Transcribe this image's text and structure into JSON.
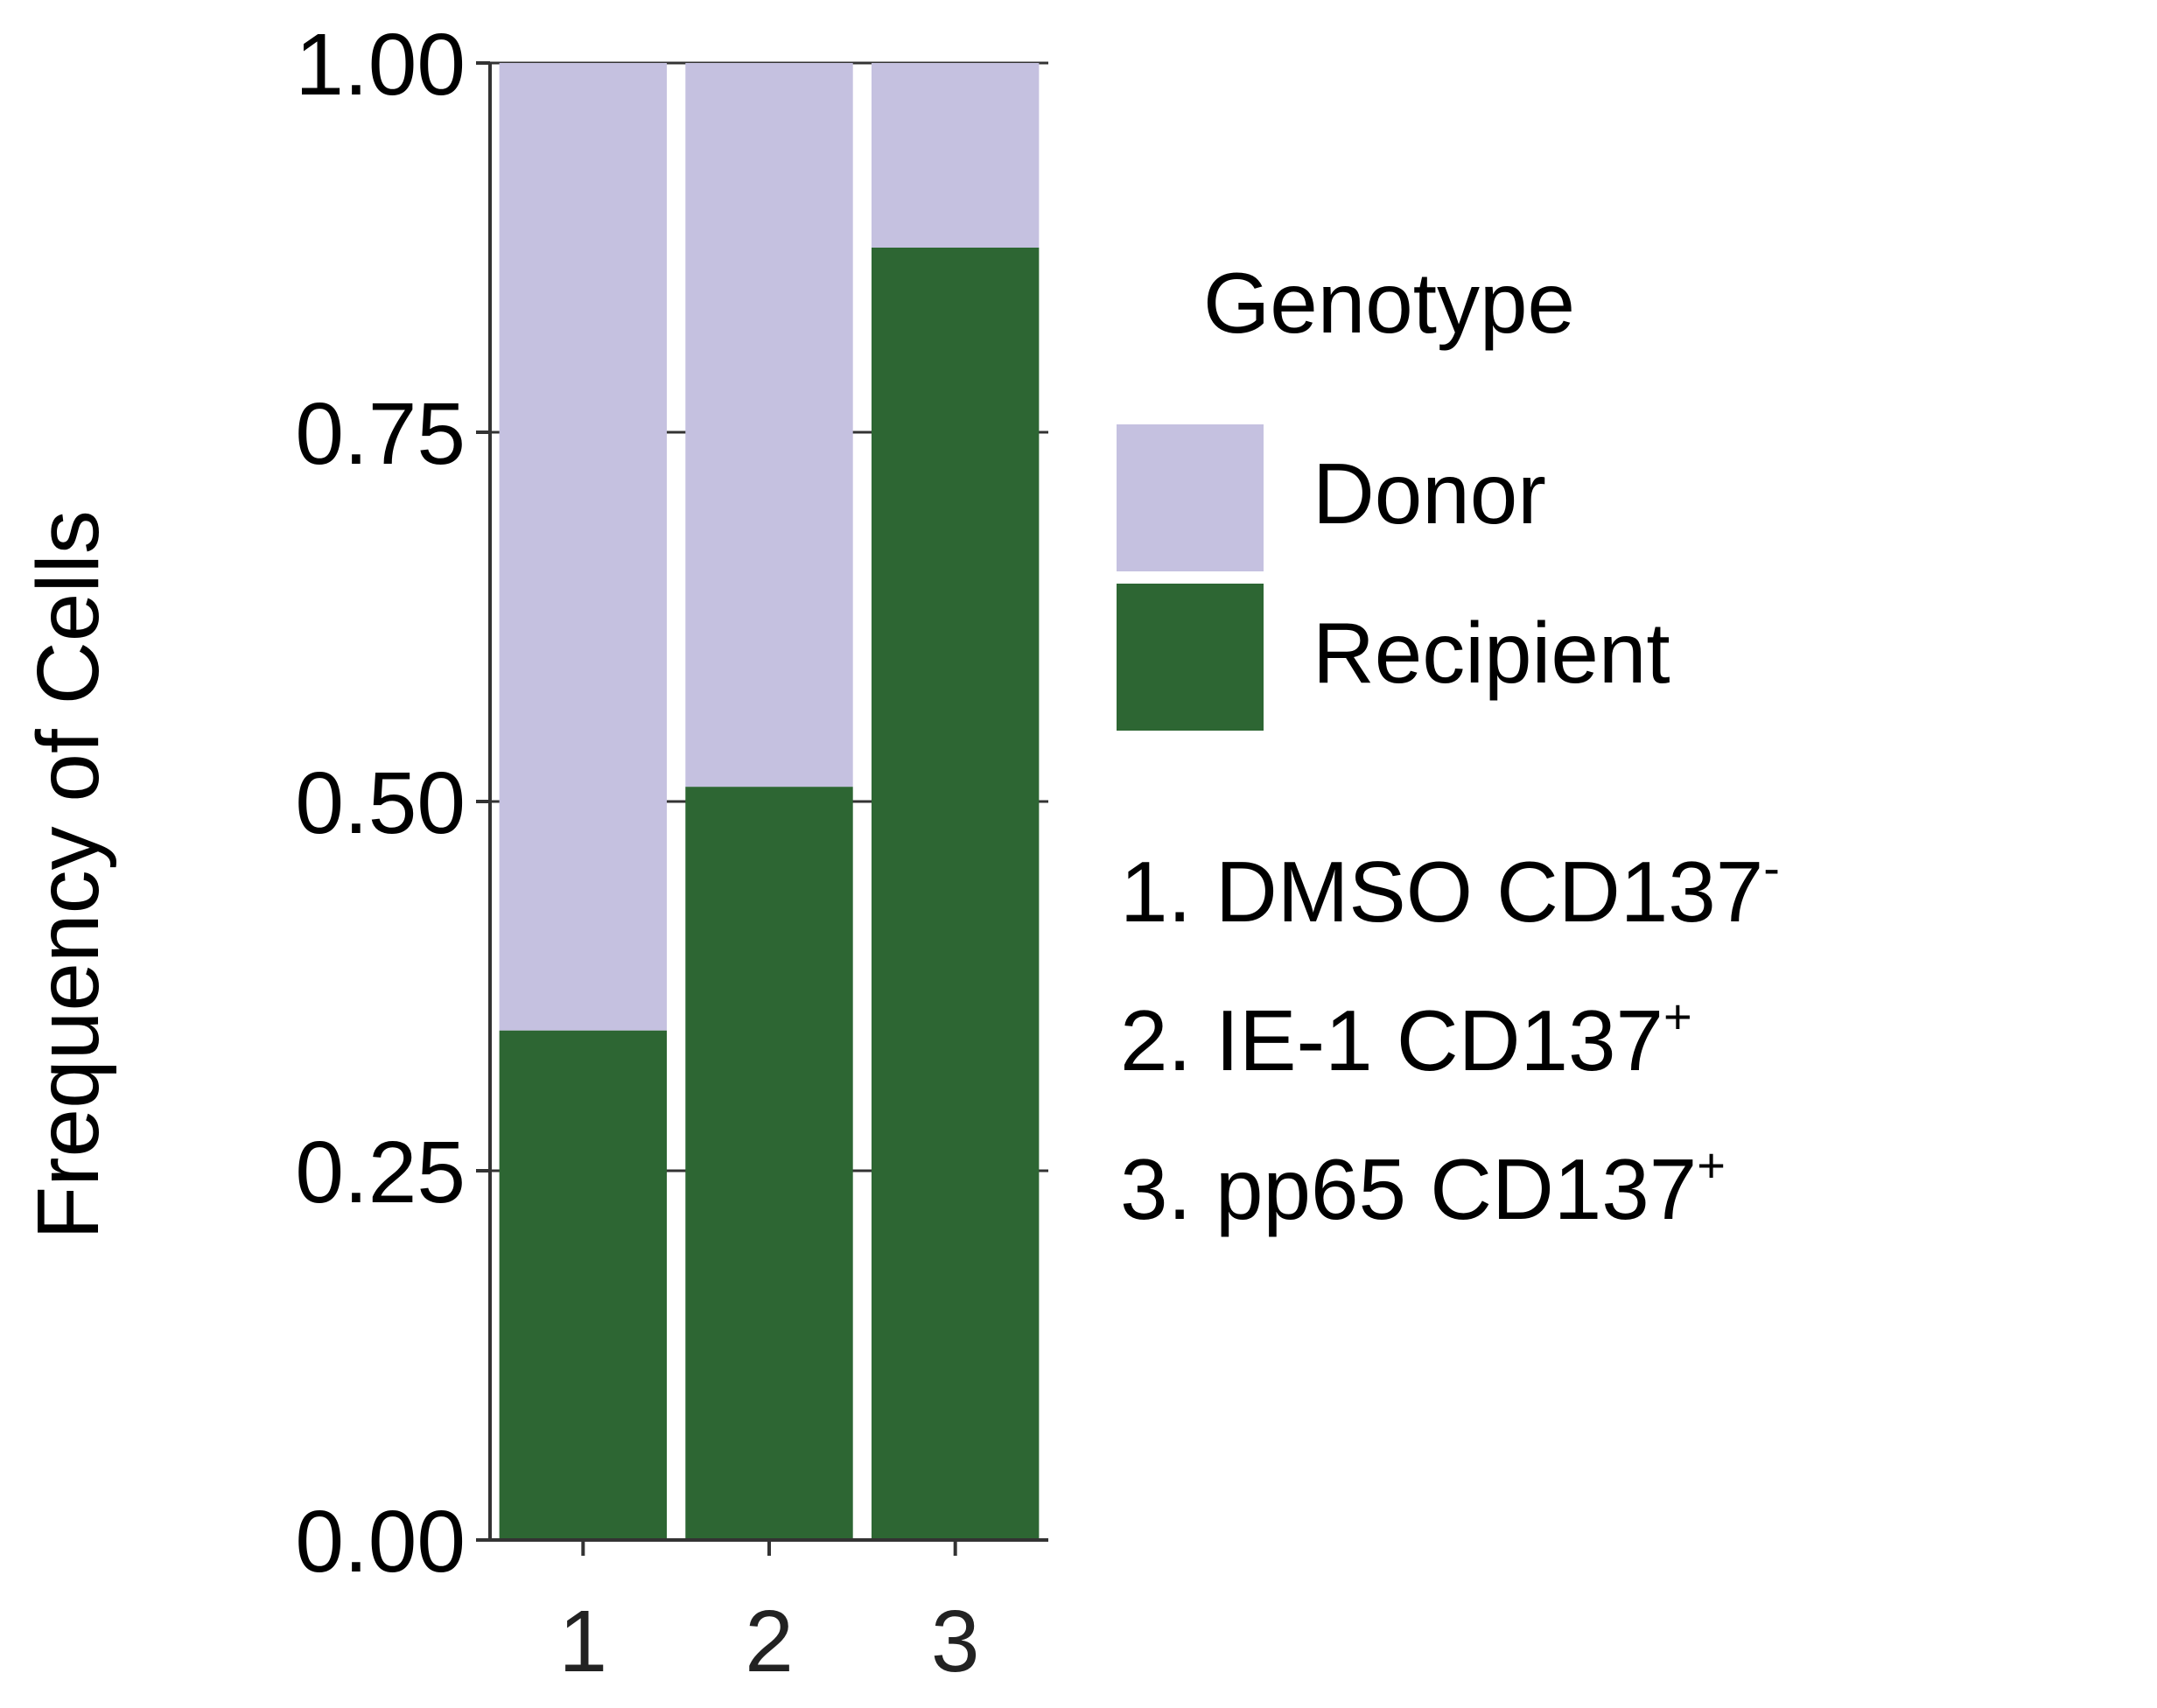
{
  "chart_data": {
    "type": "bar",
    "stacked": true,
    "title": "",
    "xlabel": "",
    "ylabel": "Frequency of Cells",
    "ylim": [
      0,
      1
    ],
    "yticks": [
      "0.00",
      "0.25",
      "0.50",
      "0.75",
      "1.00"
    ],
    "categories": [
      "1",
      "2",
      "3"
    ],
    "series": [
      {
        "name": "Recipient",
        "color": "#2d6633",
        "values": [
          0.345,
          0.51,
          0.875
        ]
      },
      {
        "name": "Donor",
        "color": "#c5c1e0",
        "values": [
          0.655,
          0.49,
          0.125
        ]
      }
    ],
    "legend": {
      "title": "Genotype",
      "placement": "right",
      "entries": [
        {
          "label": "Donor",
          "color": "#c5c1e0"
        },
        {
          "label": "Recipient",
          "color": "#2d6633"
        }
      ]
    },
    "category_notes": [
      {
        "text": "1. DMSO CD137",
        "sup": "-"
      },
      {
        "text": "2. IE-1 CD137",
        "sup": "+"
      },
      {
        "text": "3. pp65 CD137",
        "sup": "+"
      }
    ]
  }
}
